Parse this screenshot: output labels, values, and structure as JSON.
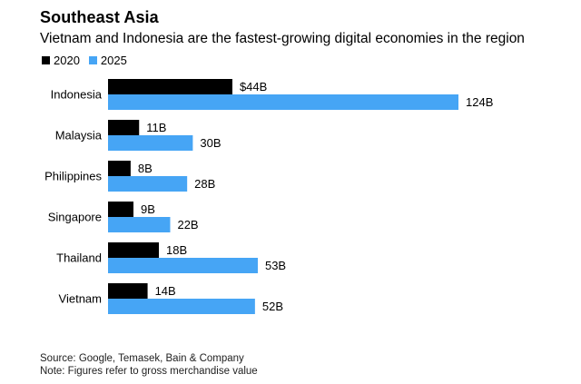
{
  "chart_data": {
    "type": "bar",
    "orientation": "horizontal",
    "title": "Southeast Asia",
    "subtitle": "Vietnam and Indonesia are the fastest-growing digital economies in the region",
    "categories": [
      "Indonesia",
      "Malaysia",
      "Philippines",
      "Singapore",
      "Thailand",
      "Vietnam"
    ],
    "series": [
      {
        "name": "2020",
        "color": "#000000",
        "values": [
          44,
          11,
          8,
          9,
          18,
          14
        ],
        "labels": [
          "$44B",
          "11B",
          "8B",
          "9B",
          "18B",
          "14B"
        ]
      },
      {
        "name": "2025",
        "color": "#46A5F5",
        "values": [
          124,
          30,
          28,
          22,
          53,
          52
        ],
        "labels": [
          "124B",
          "30B",
          "28B",
          "22B",
          "53B",
          "52B"
        ]
      }
    ],
    "unit": "USD billions",
    "xlim": [
      0,
      124
    ],
    "grid": false,
    "legend_position": "top-left"
  },
  "footnotes": {
    "source": "Source: Google, Temasek, Bain & Company",
    "note": "Note: Figures refer to gross merchandise value"
  }
}
